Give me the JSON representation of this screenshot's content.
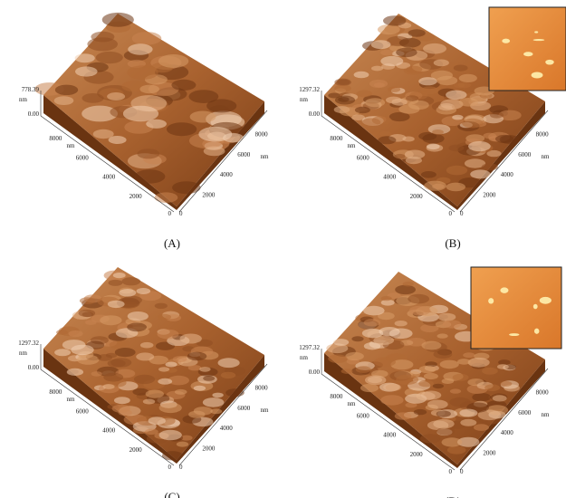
{
  "panels": [
    {
      "caption": "(A)",
      "z_max": "778.39",
      "z_min": "0.00",
      "z_unit": "nm",
      "left_ticks": [
        "8000",
        "6000",
        "4000",
        "2000"
      ],
      "left_unit": "nm",
      "right_ticks": [
        "2000",
        "4000",
        "6000",
        "8000"
      ],
      "right_unit": "nm",
      "origin_left": "0",
      "origin_right": "0"
    },
    {
      "caption": "(B)",
      "z_max": "1297.32",
      "z_min": "0.00",
      "z_unit": "nm",
      "left_ticks": [
        "8000",
        "6000",
        "4000",
        "2000"
      ],
      "left_unit": "nm",
      "right_ticks": [
        "2000",
        "4000",
        "6000",
        "8000"
      ],
      "right_unit": "nm",
      "origin_left": "0",
      "origin_right": "0"
    },
    {
      "caption": "(C)",
      "z_max": "1297.32",
      "z_min": "0.00",
      "z_unit": "nm",
      "left_ticks": [
        "8000",
        "6000",
        "4000",
        "2000"
      ],
      "left_unit": "nm",
      "right_ticks": [
        "2000",
        "4000",
        "6000",
        "8000"
      ],
      "right_unit": "nm",
      "origin_left": "0",
      "origin_right": "0"
    },
    {
      "caption": "(D)",
      "z_max": "1297.32",
      "z_min": "0.00",
      "z_unit": "nm",
      "left_ticks": [
        "8000",
        "6000",
        "4000",
        "2000"
      ],
      "left_unit": "nm",
      "right_ticks": [
        "2000",
        "4000",
        "6000",
        "8000"
      ],
      "right_unit": "nm",
      "origin_left": "0",
      "origin_right": "0"
    }
  ]
}
